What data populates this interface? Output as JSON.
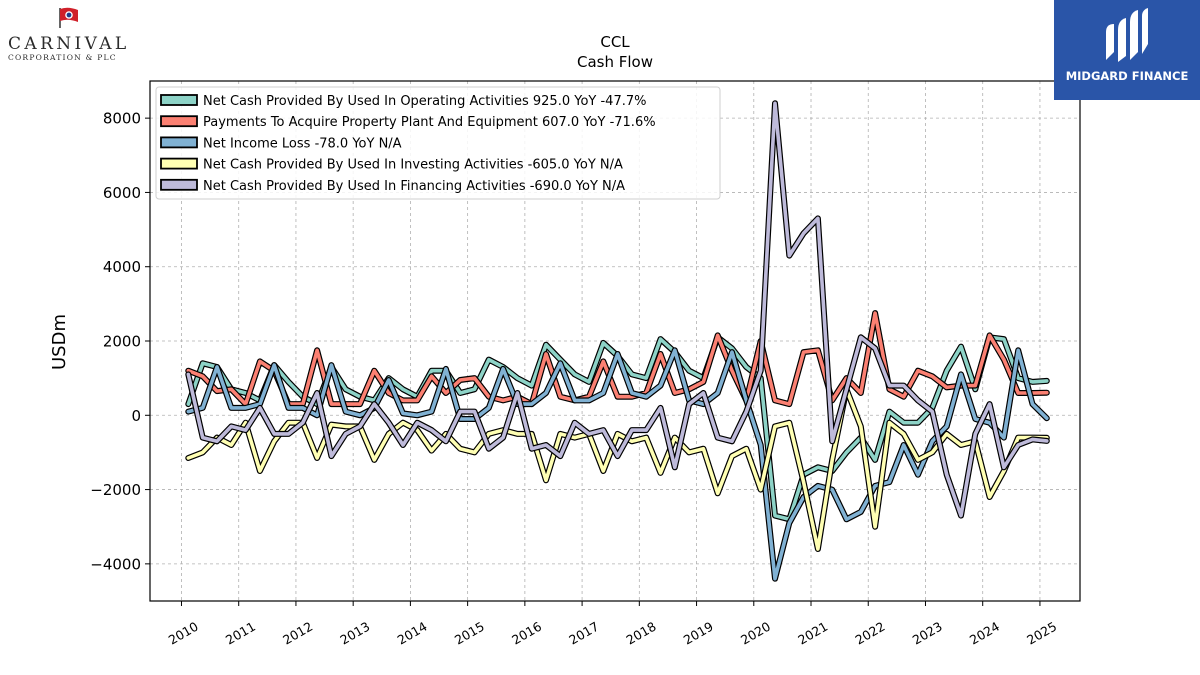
{
  "brand": {
    "corp_name": "CARNIVAL",
    "corp_sub": "CORPORATION & PLC",
    "watermark": "MIDGARD FINANCE",
    "watermark_bg": "#2a55a8"
  },
  "chart_data": {
    "type": "line",
    "title": "CCL",
    "subtitle": "Cash Flow",
    "xlabel": "",
    "ylabel": "USDm",
    "xlim": [
      2009.45,
      2025.7
    ],
    "ylim": [
      -5000,
      9000
    ],
    "xticks": [
      2010,
      2011,
      2012,
      2013,
      2014,
      2015,
      2016,
      2017,
      2018,
      2019,
      2020,
      2021,
      2022,
      2023,
      2024,
      2025
    ],
    "xtick_labels": [
      "2010",
      "2011",
      "2012",
      "2013",
      "2014",
      "2015",
      "2016",
      "2017",
      "2018",
      "2019",
      "2020",
      "2021",
      "2022",
      "2023",
      "2024",
      "2025"
    ],
    "yticks": [
      -4000,
      -2000,
      0,
      2000,
      4000,
      6000,
      8000
    ],
    "ytick_labels": [
      "−4000",
      "−2000",
      "0",
      "2000",
      "4000",
      "6000",
      "8000"
    ],
    "grid": true,
    "legend_position": "top-left",
    "x": [
      2010.12,
      2010.37,
      2010.62,
      2010.87,
      2011.12,
      2011.37,
      2011.62,
      2011.87,
      2012.12,
      2012.37,
      2012.62,
      2012.87,
      2013.12,
      2013.37,
      2013.62,
      2013.87,
      2014.12,
      2014.37,
      2014.62,
      2014.87,
      2015.12,
      2015.37,
      2015.62,
      2015.87,
      2016.12,
      2016.37,
      2016.62,
      2016.87,
      2017.12,
      2017.37,
      2017.62,
      2017.87,
      2018.12,
      2018.37,
      2018.62,
      2018.87,
      2019.12,
      2019.37,
      2019.62,
      2019.87,
      2020.12,
      2020.37,
      2020.62,
      2020.87,
      2021.12,
      2021.37,
      2021.62,
      2021.87,
      2022.12,
      2022.37,
      2022.62,
      2022.87,
      2023.12,
      2023.37,
      2023.62,
      2023.87,
      2024.12,
      2024.37,
      2024.62,
      2024.87,
      2025.12
    ],
    "series": [
      {
        "name": "Net Cash Provided By Used In Operating Activities",
        "legend_label": "Net Cash Provided By Used In Operating Activities  925.0 YoY -47.7%",
        "color": "#8dd3c7",
        "values": [
          300,
          1400,
          1300,
          700,
          600,
          400,
          1350,
          900,
          500,
          300,
          1300,
          700,
          500,
          400,
          1000,
          700,
          500,
          1200,
          1200,
          600,
          700,
          1500,
          1300,
          1000,
          800,
          1900,
          1500,
          1100,
          900,
          1950,
          1600,
          1100,
          1000,
          2050,
          1700,
          1200,
          1000,
          2100,
          1800,
          1300,
          1000,
          -2700,
          -2800,
          -1600,
          -1400,
          -1500,
          -1000,
          -600,
          -1200,
          100,
          -200,
          -200,
          200,
          1200,
          1850,
          700,
          2100,
          2050,
          1000,
          900,
          925
        ]
      },
      {
        "name": "Payments To Acquire Property Plant And Equipment",
        "legend_label": "Payments To Acquire Property Plant And Equipment  607.0 YoY -71.6%",
        "color": "#fb8072",
        "values": [
          1200,
          1050,
          650,
          700,
          300,
          1450,
          1200,
          300,
          300,
          1750,
          300,
          300,
          300,
          1200,
          600,
          400,
          400,
          1050,
          600,
          950,
          1000,
          500,
          400,
          500,
          300,
          1650,
          500,
          400,
          500,
          1450,
          500,
          500,
          600,
          1650,
          600,
          700,
          900,
          2150,
          1200,
          400,
          2000,
          400,
          300,
          1700,
          1750,
          400,
          1000,
          600,
          2750,
          700,
          500,
          1200,
          1050,
          750,
          800,
          800,
          2150,
          1500,
          600,
          600,
          607
        ]
      },
      {
        "name": "Net Income Loss",
        "legend_label": "Net Income Loss  -78.0 YoY N/A",
        "color": "#80b1d3",
        "values": [
          100,
          200,
          1300,
          200,
          200,
          300,
          1350,
          200,
          200,
          0,
          1350,
          100,
          0,
          200,
          950,
          50,
          0,
          100,
          1250,
          -100,
          -100,
          200,
          1250,
          300,
          300,
          600,
          1400,
          400,
          400,
          600,
          1650,
          600,
          500,
          800,
          1750,
          400,
          300,
          600,
          1700,
          400,
          -800,
          -4400,
          -2900,
          -2200,
          -1900,
          -2000,
          -2800,
          -2600,
          -1900,
          -1800,
          -800,
          -1600,
          -700,
          -300,
          1100,
          -100,
          -200,
          -600,
          1750,
          300,
          -78
        ]
      },
      {
        "name": "Net Cash Provided By Used In Investing Activities",
        "legend_label": "Net Cash Provided By Used In Investing Activities  -605.0 YoY N/A",
        "color": "#ffffb3",
        "values": [
          -1150,
          -1000,
          -600,
          -800,
          -200,
          -1500,
          -700,
          -200,
          -200,
          -1150,
          -250,
          -300,
          -300,
          -1200,
          -500,
          -200,
          -400,
          -950,
          -500,
          -900,
          -1000,
          -500,
          -400,
          -500,
          -500,
          -1750,
          -500,
          -600,
          -500,
          -1500,
          -500,
          -700,
          -600,
          -1550,
          -600,
          -1000,
          -900,
          -2100,
          -1100,
          -900,
          -2000,
          -300,
          -200,
          -1800,
          -3600,
          -1200,
          700,
          -300,
          -3000,
          -200,
          -500,
          -1200,
          -1000,
          -500,
          -800,
          -700,
          -2200,
          -1500,
          -600,
          -600,
          -605
        ]
      },
      {
        "name": "Net Cash Provided By Used In Financing Activities",
        "legend_label": "Net Cash Provided By Used In Financing Activities  -690.0 YoY N/A",
        "color": "#bebada",
        "values": [
          1100,
          -600,
          -700,
          -300,
          -400,
          200,
          -500,
          -500,
          -200,
          600,
          -1100,
          -500,
          -300,
          300,
          -200,
          -800,
          -200,
          -400,
          -700,
          100,
          100,
          -900,
          -600,
          600,
          -900,
          -800,
          -1100,
          -200,
          -500,
          -400,
          -1100,
          -400,
          -400,
          200,
          -1400,
          300,
          600,
          -600,
          -700,
          100,
          1200,
          8400,
          4300,
          4900,
          5300,
          -700,
          700,
          2100,
          1800,
          800,
          800,
          400,
          100,
          -1600,
          -2700,
          -500,
          300,
          -1400,
          -800,
          -650,
          -690
        ]
      }
    ]
  }
}
